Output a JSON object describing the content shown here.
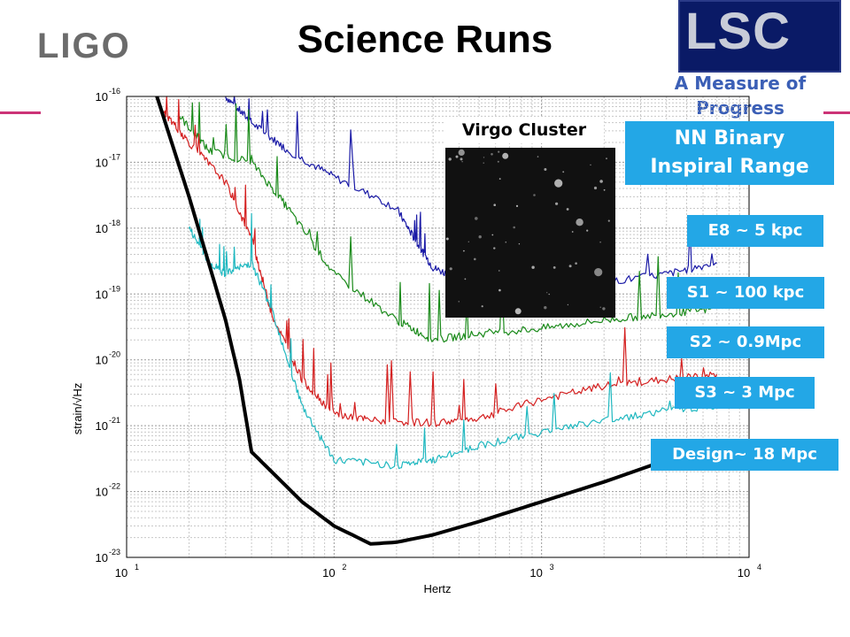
{
  "slide": {
    "logo_text": "LIGO",
    "title": "Science Runs",
    "lsc_logo": "LSC",
    "subtitle_lines": [
      "A Measure of",
      "Progress"
    ],
    "nn_box_lines": [
      "NN Binary",
      "Inspiral  Range"
    ],
    "virgo_label": "Virgo Cluster"
  },
  "colors": {
    "E8": "#1a1aa6",
    "S1": "#1a8a1a",
    "S2": "#d42020",
    "S3": "#20b8c0",
    "Design": "#000000",
    "label_box": "#23a7e6",
    "accent": "#cc3377"
  },
  "range_labels": [
    {
      "text": "E8 ~ 5 kpc"
    },
    {
      "text": "S1 ~ 100 kpc"
    },
    {
      "text": "S2 ~ 0.9Mpc"
    },
    {
      "text": "S3 ~ 3 Mpc"
    },
    {
      "text": "Design~ 18 Mpc"
    }
  ],
  "chart_data": {
    "type": "line",
    "xlabel": "Hertz",
    "ylabel": "strain/√Hz",
    "xscale": "log",
    "yscale": "log",
    "xlim": [
      10,
      10000
    ],
    "ylim": [
      1e-23,
      1e-16
    ],
    "x_ticks": [
      {
        "base": "10",
        "exp": "1"
      },
      {
        "base": "10",
        "exp": "2"
      },
      {
        "base": "10",
        "exp": "3"
      },
      {
        "base": "10",
        "exp": "4"
      }
    ],
    "y_ticks": [
      {
        "base": "10",
        "exp": "-16"
      },
      {
        "base": "10",
        "exp": "-17"
      },
      {
        "base": "10",
        "exp": "-18"
      },
      {
        "base": "10",
        "exp": "-19"
      },
      {
        "base": "10",
        "exp": "-20"
      },
      {
        "base": "10",
        "exp": "-21"
      },
      {
        "base": "10",
        "exp": "-22"
      },
      {
        "base": "10",
        "exp": "-23"
      }
    ],
    "grid": true,
    "series": [
      {
        "key": "E8",
        "x": [
          30,
          40,
          60,
          100,
          200,
          250,
          300,
          400,
          600,
          1000,
          2000,
          4000,
          7000
        ],
        "y": [
          1e-16,
          4e-17,
          1.5e-17,
          6e-18,
          2e-18,
          6e-19,
          2.5e-19,
          1.7e-19,
          1.2e-19,
          1.3e-19,
          1.5e-19,
          2e-19,
          3e-19
        ]
      },
      {
        "key": "S1",
        "x": [
          18,
          25,
          40,
          60,
          100,
          200,
          300,
          500,
          1000,
          2000,
          4000,
          7000
        ],
        "y": [
          5e-17,
          1.5e-17,
          1e-17,
          2e-18,
          2e-19,
          4e-20,
          2e-20,
          2.5e-20,
          3e-20,
          4e-20,
          5e-20,
          6e-20
        ]
      },
      {
        "key": "S2",
        "x": [
          15,
          20,
          30,
          40,
          50,
          70,
          100,
          150,
          300,
          500,
          1000,
          2000,
          4000,
          7000
        ],
        "y": [
          6e-17,
          2e-17,
          5e-18,
          7e-19,
          5e-20,
          5e-21,
          1.5e-21,
          1.2e-21,
          1.1e-21,
          1.3e-21,
          2.5e-21,
          4e-21,
          5e-21,
          6e-21
        ]
      },
      {
        "key": "S3",
        "x": [
          20,
          25,
          30,
          40,
          50,
          70,
          100,
          200,
          300,
          500,
          1000,
          2000,
          4000,
          7000
        ],
        "y": [
          1e-18,
          3e-19,
          2e-19,
          3e-19,
          6e-20,
          2e-21,
          3e-22,
          2.5e-22,
          3e-22,
          5e-22,
          8e-22,
          1.2e-21,
          1.7e-21,
          2e-21
        ]
      },
      {
        "key": "Design",
        "x": [
          14,
          20,
          30,
          35,
          40,
          50,
          70,
          100,
          150,
          200,
          300,
          500,
          1000,
          2000,
          4000,
          7000
        ],
        "y": [
          1e-16,
          3e-18,
          4e-20,
          5e-21,
          4e-22,
          2e-22,
          7e-23,
          3e-23,
          1.6e-23,
          1.7e-23,
          2.2e-23,
          3.5e-23,
          7e-23,
          1.4e-22,
          3e-22,
          5e-22
        ]
      }
    ]
  }
}
